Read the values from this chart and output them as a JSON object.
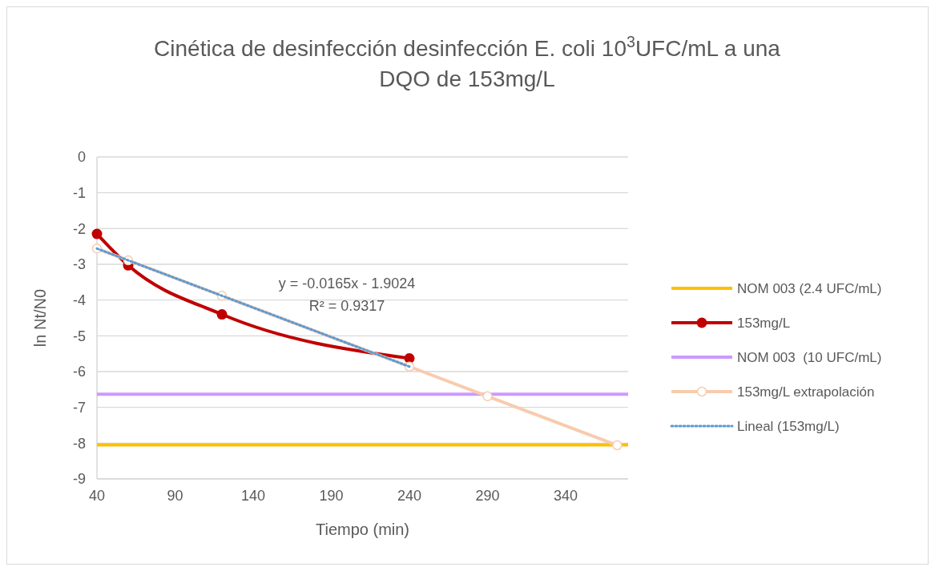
{
  "chart_data": {
    "type": "line",
    "title": "Cinética de desinfección desinfección E. coli 10$^{3}$UFC/mL a una DQO de 153mg/L",
    "xlabel": "Tiempo (min)",
    "ylabel": "ln Nt/N0",
    "xlim": [
      40,
      380
    ],
    "xticks": [
      40,
      90,
      140,
      190,
      240,
      290,
      340
    ],
    "ylim": [
      -9,
      0
    ],
    "yticks": [
      -9,
      -8,
      -7,
      -6,
      -5,
      -4,
      -3,
      -2,
      -1,
      0
    ],
    "grid": "y",
    "legend": "right",
    "series": [
      {
        "name": "NOM 003 (2.4 UFC/mL)",
        "color": "#ffc000",
        "x": [
          40,
          380
        ],
        "values": [
          -8.05,
          -8.05
        ],
        "marker": "none"
      },
      {
        "name": "153mg/L",
        "color": "#c00000",
        "x": [
          40,
          60,
          120,
          240
        ],
        "values": [
          -2.15,
          -3.03,
          -4.4,
          -5.63
        ],
        "marker": "circle"
      },
      {
        "name": "NOM 003  (10 UFC/mL)",
        "color": "#cc99ff",
        "x": [
          40,
          380
        ],
        "values": [
          -6.63,
          -6.63
        ],
        "marker": "none"
      },
      {
        "name": "153mg/L extrapolación",
        "color": "#f8cbad",
        "x": [
          40,
          60,
          120,
          240,
          290,
          373
        ],
        "values": [
          -2.56,
          -2.89,
          -3.88,
          -5.86,
          -6.69,
          -8.06
        ],
        "marker": "circle_open"
      },
      {
        "name": "Lineal (153mg/L)",
        "color": "#5b9bd5",
        "x": [
          40,
          240
        ],
        "values": [
          -2.56,
          -5.86
        ],
        "marker": "none",
        "line_style": "dotted"
      }
    ],
    "annotations": [
      "y = -0.0165x - 1.9024",
      "R² = 0.9317"
    ]
  }
}
